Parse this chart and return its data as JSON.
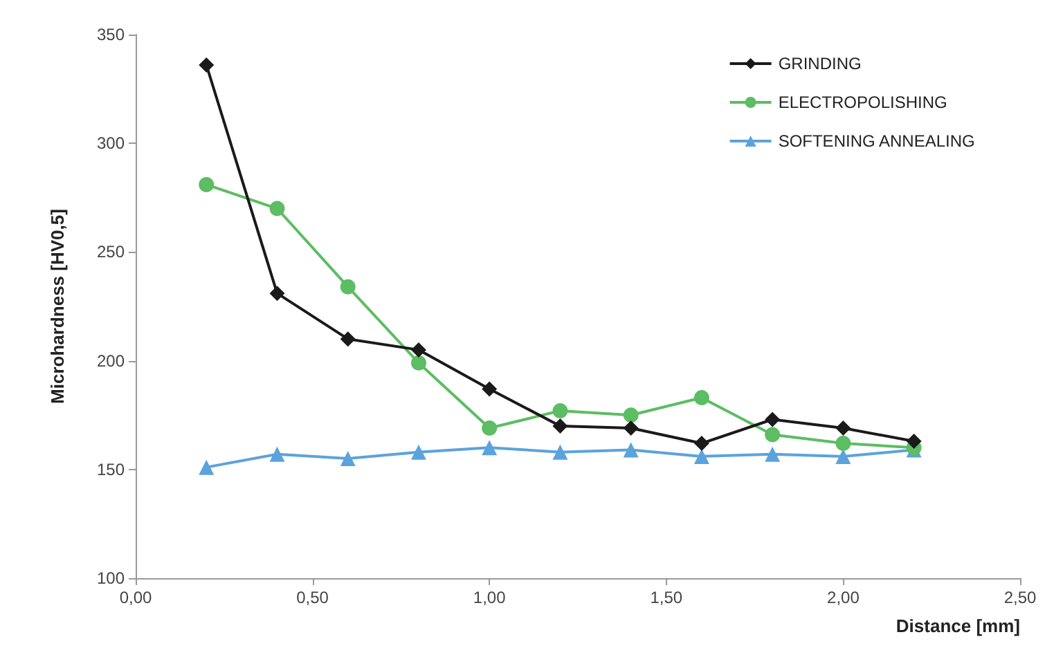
{
  "chart_data": {
    "type": "line",
    "xlabel": "Distance [mm]",
    "ylabel": "Microhardness [HV0,5]",
    "x": [
      0.2,
      0.4,
      0.6,
      0.8,
      1.0,
      1.2,
      1.4,
      1.6,
      1.8,
      2.0,
      2.2
    ],
    "series": [
      {
        "name": "GRINDING",
        "color": "#1a1a1a",
        "marker": "diamond",
        "values": [
          336,
          231,
          210,
          205,
          187,
          170,
          169,
          162,
          173,
          169,
          163
        ]
      },
      {
        "name": "ELECTROPOLISHING",
        "color": "#5cbd62",
        "marker": "circle",
        "values": [
          281,
          270,
          234,
          199,
          169,
          177,
          175,
          183,
          166,
          162,
          160
        ]
      },
      {
        "name": "SOFTENING ANNEALING",
        "color": "#5ba3dc",
        "marker": "triangle",
        "values": [
          151,
          157,
          155,
          158,
          160,
          158,
          159,
          156,
          157,
          156,
          159
        ]
      }
    ],
    "xlim": [
      0,
      2.5
    ],
    "xticks": [
      {
        "value": 0,
        "label": "0,00"
      },
      {
        "value": 0.5,
        "label": "0,50"
      },
      {
        "value": 1,
        "label": "1,00"
      },
      {
        "value": 1.5,
        "label": "1,50"
      },
      {
        "value": 2,
        "label": "2,00"
      },
      {
        "value": 2.5,
        "label": "2,50"
      }
    ],
    "ylim": [
      100,
      350
    ],
    "yticks": [
      100,
      150,
      200,
      250,
      300,
      350
    ],
    "grid": false,
    "legend": "top right"
  }
}
